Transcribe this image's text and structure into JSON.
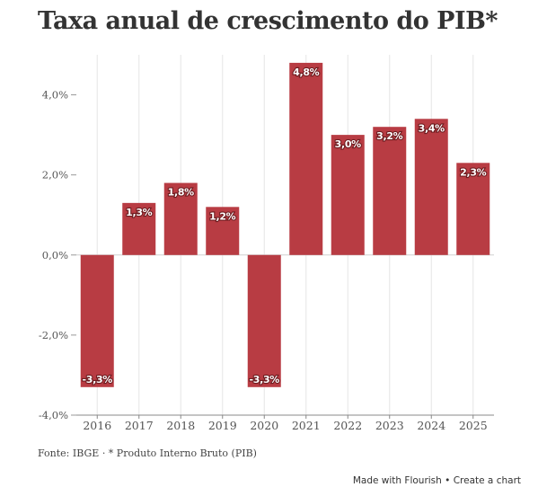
{
  "title": "Taxa anual de crescimento do PIB*",
  "source": "Fonte: IBGE · * Produto Interno Bruto (PIB)",
  "credit": {
    "made_with": "Made with Flourish",
    "separator": "•",
    "create": "Create a chart"
  },
  "colors": {
    "bar": "#b83c43",
    "grid": "#e6e6e6",
    "axis": "#555555",
    "label_text": "#ffffff"
  },
  "chart_data": {
    "type": "bar",
    "title": "Taxa anual de crescimento do PIB*",
    "xlabel": "",
    "ylabel": "",
    "categories": [
      "2016",
      "2017",
      "2018",
      "2019",
      "2020",
      "2021",
      "2022",
      "2023",
      "2024",
      "2025"
    ],
    "values": [
      -3.3,
      1.3,
      1.8,
      1.2,
      -3.3,
      4.8,
      3.0,
      3.2,
      3.4,
      2.3
    ],
    "value_labels": [
      "-3,3%",
      "1,3%",
      "1,8%",
      "1,2%",
      "-3,3%",
      "4,8%",
      "3,0%",
      "3,2%",
      "3,4%",
      "2,3%"
    ],
    "ylim": [
      -4,
      5
    ],
    "y_ticks": [
      4,
      2,
      0,
      -2,
      -4
    ],
    "y_tick_labels": [
      "4,0%",
      "2,0%",
      "0,0%",
      "-2,0%",
      "-4,0%"
    ],
    "grid": true,
    "legend": "none"
  }
}
